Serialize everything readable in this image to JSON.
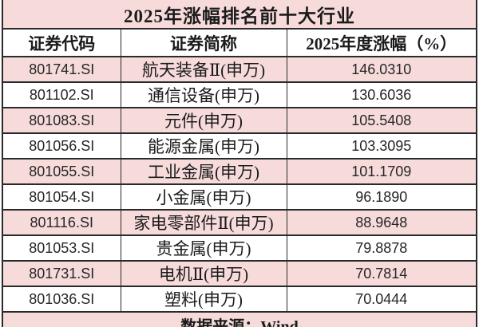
{
  "chart_data": {
    "type": "table",
    "title": "2025年涨幅排名前十大行业",
    "columns": [
      "证券代码",
      "证券简称",
      "2025年度涨幅（%）"
    ],
    "rows": [
      [
        "801741.SI",
        "航天装备Ⅱ(申万)",
        "146.0310"
      ],
      [
        "801102.SI",
        "通信设备(申万)",
        "130.6036"
      ],
      [
        "801083.SI",
        "元件(申万)",
        "105.5408"
      ],
      [
        "801056.SI",
        "能源金属(申万)",
        "103.3095"
      ],
      [
        "801055.SI",
        "工业金属(申万)",
        "101.1709"
      ],
      [
        "801054.SI",
        "小金属(申万)",
        "96.1890"
      ],
      [
        "801116.SI",
        "家电零部件Ⅱ(申万)",
        "88.9648"
      ],
      [
        "801053.SI",
        "贵金属(申万)",
        "79.8878"
      ],
      [
        "801731.SI",
        "电机Ⅱ(申万)",
        "70.7814"
      ],
      [
        "801036.SI",
        "塑料(申万)",
        "70.0444"
      ]
    ],
    "footer": "数据来源：Wind",
    "layout": {
      "zebra_striping": true,
      "first_data_row_shaded": true
    }
  },
  "colors": {
    "row_pink": "#f7dbdb",
    "row_white": "#ffffff",
    "border": "#2a2a2a",
    "text": "#1b1b1b"
  }
}
